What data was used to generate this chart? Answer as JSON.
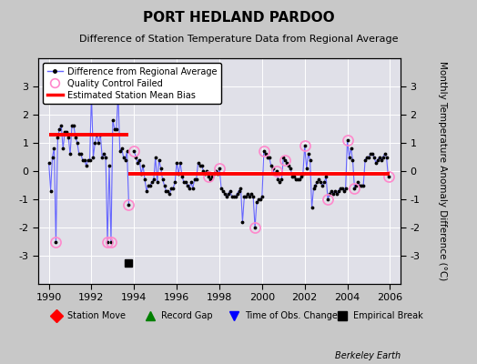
{
  "title": "PORT HEDLAND PARDOO",
  "subtitle": "Difference of Station Temperature Data from Regional Average",
  "ylabel": "Monthly Temperature Anomaly Difference (°C)",
  "xlim": [
    1989.5,
    2006.5
  ],
  "ylim": [
    -4,
    4
  ],
  "yticks": [
    -3,
    -2,
    -1,
    0,
    1,
    2,
    3
  ],
  "xticks": [
    1990,
    1992,
    1994,
    1996,
    1998,
    2000,
    2002,
    2004,
    2006
  ],
  "bg_color": "#c8c8c8",
  "plot_bg_color": "#e0e0e8",
  "bias_segment1": {
    "x_start": 1990.0,
    "x_end": 1993.75,
    "y": 1.3
  },
  "bias_segment2": {
    "x_start": 1993.75,
    "x_end": 2006.0,
    "y": -0.1
  },
  "empirical_break_x": 1993.75,
  "empirical_break_y": -3.25,
  "data": [
    [
      1990.0,
      0.3
    ],
    [
      1990.083,
      -0.7
    ],
    [
      1990.167,
      0.5
    ],
    [
      1990.25,
      0.8
    ],
    [
      1990.333,
      -2.5
    ],
    [
      1990.417,
      1.2
    ],
    [
      1990.5,
      1.5
    ],
    [
      1990.583,
      1.6
    ],
    [
      1990.667,
      0.8
    ],
    [
      1990.75,
      1.4
    ],
    [
      1990.833,
      1.4
    ],
    [
      1990.917,
      1.2
    ],
    [
      1991.0,
      0.6
    ],
    [
      1991.083,
      1.6
    ],
    [
      1991.167,
      1.6
    ],
    [
      1991.25,
      1.2
    ],
    [
      1991.333,
      1.0
    ],
    [
      1991.417,
      0.6
    ],
    [
      1991.5,
      0.6
    ],
    [
      1991.583,
      0.4
    ],
    [
      1991.667,
      0.4
    ],
    [
      1991.75,
      0.2
    ],
    [
      1991.833,
      0.4
    ],
    [
      1991.917,
      0.4
    ],
    [
      1992.0,
      2.7
    ],
    [
      1992.083,
      0.5
    ],
    [
      1992.167,
      1.0
    ],
    [
      1992.25,
      1.3
    ],
    [
      1992.333,
      1.0
    ],
    [
      1992.417,
      1.3
    ],
    [
      1992.5,
      0.5
    ],
    [
      1992.583,
      0.6
    ],
    [
      1992.667,
      0.5
    ],
    [
      1992.75,
      -2.5
    ],
    [
      1992.833,
      0.2
    ],
    [
      1992.917,
      -2.5
    ],
    [
      1993.0,
      1.8
    ],
    [
      1993.083,
      1.5
    ],
    [
      1993.167,
      1.5
    ],
    [
      1993.25,
      2.7
    ],
    [
      1993.333,
      0.7
    ],
    [
      1993.417,
      0.8
    ],
    [
      1993.5,
      0.5
    ],
    [
      1993.583,
      0.4
    ],
    [
      1993.667,
      0.7
    ],
    [
      1993.75,
      -1.2
    ],
    [
      1994.0,
      0.7
    ],
    [
      1994.083,
      0.5
    ],
    [
      1994.167,
      0.3
    ],
    [
      1994.25,
      0.4
    ],
    [
      1994.333,
      -0.1
    ],
    [
      1994.417,
      0.2
    ],
    [
      1994.5,
      -0.3
    ],
    [
      1994.583,
      -0.7
    ],
    [
      1994.667,
      -0.5
    ],
    [
      1994.75,
      -0.5
    ],
    [
      1994.833,
      -0.4
    ],
    [
      1994.917,
      -0.3
    ],
    [
      1995.0,
      0.5
    ],
    [
      1995.083,
      -0.4
    ],
    [
      1995.167,
      0.4
    ],
    [
      1995.25,
      0.1
    ],
    [
      1995.333,
      -0.3
    ],
    [
      1995.417,
      -0.5
    ],
    [
      1995.5,
      -0.7
    ],
    [
      1995.583,
      -0.7
    ],
    [
      1995.667,
      -0.8
    ],
    [
      1995.75,
      -0.6
    ],
    [
      1995.833,
      -0.6
    ],
    [
      1995.917,
      -0.4
    ],
    [
      1996.0,
      0.3
    ],
    [
      1996.083,
      -0.1
    ],
    [
      1996.167,
      0.3
    ],
    [
      1996.25,
      -0.2
    ],
    [
      1996.333,
      -0.4
    ],
    [
      1996.417,
      -0.4
    ],
    [
      1996.5,
      -0.5
    ],
    [
      1996.583,
      -0.6
    ],
    [
      1996.667,
      -0.4
    ],
    [
      1996.75,
      -0.6
    ],
    [
      1996.833,
      -0.3
    ],
    [
      1996.917,
      -0.3
    ],
    [
      1997.0,
      0.3
    ],
    [
      1997.083,
      0.2
    ],
    [
      1997.167,
      0.2
    ],
    [
      1997.25,
      0.0
    ],
    [
      1997.333,
      -0.1
    ],
    [
      1997.417,
      0.0
    ],
    [
      1997.5,
      -0.2
    ],
    [
      1997.583,
      -0.3
    ],
    [
      1997.667,
      -0.2
    ],
    [
      1997.75,
      -0.1
    ],
    [
      1997.833,
      0.0
    ],
    [
      1997.917,
      -0.1
    ],
    [
      1998.0,
      0.1
    ],
    [
      1998.083,
      -0.6
    ],
    [
      1998.167,
      -0.7
    ],
    [
      1998.25,
      -0.8
    ],
    [
      1998.333,
      -0.9
    ],
    [
      1998.417,
      -0.8
    ],
    [
      1998.5,
      -0.7
    ],
    [
      1998.583,
      -0.9
    ],
    [
      1998.667,
      -0.9
    ],
    [
      1998.75,
      -0.9
    ],
    [
      1998.833,
      -0.8
    ],
    [
      1998.917,
      -0.7
    ],
    [
      1999.0,
      -0.6
    ],
    [
      1999.083,
      -1.8
    ],
    [
      1999.167,
      -0.9
    ],
    [
      1999.25,
      -0.9
    ],
    [
      1999.333,
      -0.8
    ],
    [
      1999.417,
      -0.9
    ],
    [
      1999.5,
      -0.8
    ],
    [
      1999.583,
      -0.9
    ],
    [
      1999.667,
      -2.0
    ],
    [
      1999.75,
      -1.1
    ],
    [
      1999.833,
      -1.0
    ],
    [
      1999.917,
      -1.0
    ],
    [
      2000.0,
      -0.9
    ],
    [
      2000.083,
      0.7
    ],
    [
      2000.167,
      0.6
    ],
    [
      2000.25,
      0.5
    ],
    [
      2000.333,
      0.5
    ],
    [
      2000.417,
      0.2
    ],
    [
      2000.5,
      0.1
    ],
    [
      2000.583,
      -0.1
    ],
    [
      2000.667,
      0.0
    ],
    [
      2000.75,
      -0.3
    ],
    [
      2000.833,
      -0.4
    ],
    [
      2000.917,
      -0.3
    ],
    [
      2001.0,
      0.5
    ],
    [
      2001.083,
      0.4
    ],
    [
      2001.167,
      0.3
    ],
    [
      2001.25,
      0.2
    ],
    [
      2001.333,
      0.1
    ],
    [
      2001.417,
      -0.2
    ],
    [
      2001.5,
      -0.2
    ],
    [
      2001.583,
      -0.3
    ],
    [
      2001.667,
      -0.3
    ],
    [
      2001.75,
      -0.3
    ],
    [
      2001.833,
      -0.2
    ],
    [
      2001.917,
      -0.1
    ],
    [
      2002.0,
      0.9
    ],
    [
      2002.083,
      0.1
    ],
    [
      2002.167,
      0.6
    ],
    [
      2002.25,
      0.4
    ],
    [
      2002.333,
      -1.3
    ],
    [
      2002.417,
      -0.6
    ],
    [
      2002.5,
      -0.5
    ],
    [
      2002.583,
      -0.4
    ],
    [
      2002.667,
      -0.3
    ],
    [
      2002.75,
      -0.4
    ],
    [
      2002.833,
      -0.5
    ],
    [
      2002.917,
      -0.4
    ],
    [
      2003.0,
      -0.2
    ],
    [
      2003.083,
      -1.0
    ],
    [
      2003.167,
      -0.8
    ],
    [
      2003.25,
      -0.7
    ],
    [
      2003.333,
      -0.8
    ],
    [
      2003.417,
      -0.7
    ],
    [
      2003.5,
      -0.8
    ],
    [
      2003.583,
      -0.7
    ],
    [
      2003.667,
      -0.6
    ],
    [
      2003.75,
      -0.6
    ],
    [
      2003.833,
      -0.7
    ],
    [
      2003.917,
      -0.6
    ],
    [
      2004.0,
      1.1
    ],
    [
      2004.083,
      0.5
    ],
    [
      2004.167,
      0.8
    ],
    [
      2004.25,
      0.4
    ],
    [
      2004.333,
      -0.6
    ],
    [
      2004.417,
      -0.5
    ],
    [
      2004.5,
      -0.4
    ],
    [
      2004.583,
      -0.5
    ],
    [
      2004.667,
      -0.5
    ],
    [
      2004.75,
      -0.5
    ],
    [
      2004.833,
      0.4
    ],
    [
      2004.917,
      0.5
    ],
    [
      2005.0,
      0.5
    ],
    [
      2005.083,
      0.6
    ],
    [
      2005.167,
      0.6
    ],
    [
      2005.25,
      0.5
    ],
    [
      2005.333,
      0.3
    ],
    [
      2005.417,
      0.4
    ],
    [
      2005.5,
      0.5
    ],
    [
      2005.583,
      0.4
    ],
    [
      2005.667,
      0.5
    ],
    [
      2005.75,
      0.6
    ],
    [
      2005.833,
      0.5
    ],
    [
      2005.917,
      -0.2
    ]
  ],
  "qc_failed_points": [
    [
      1990.333,
      -2.5
    ],
    [
      1992.0,
      2.7
    ],
    [
      1992.75,
      -2.5
    ],
    [
      1992.917,
      -2.5
    ],
    [
      1993.25,
      2.7
    ],
    [
      1993.75,
      -1.2
    ],
    [
      1994.0,
      0.7
    ],
    [
      1997.5,
      -0.2
    ],
    [
      1998.0,
      0.1
    ],
    [
      1999.667,
      -2.0
    ],
    [
      2000.083,
      0.7
    ],
    [
      2000.667,
      0.0
    ],
    [
      2001.083,
      0.4
    ],
    [
      2002.0,
      0.9
    ],
    [
      2003.083,
      -1.0
    ],
    [
      2004.0,
      1.1
    ],
    [
      2004.333,
      -0.6
    ],
    [
      2005.917,
      -0.2
    ]
  ],
  "gap_x": 1993.75,
  "gap_end": 1994.0
}
